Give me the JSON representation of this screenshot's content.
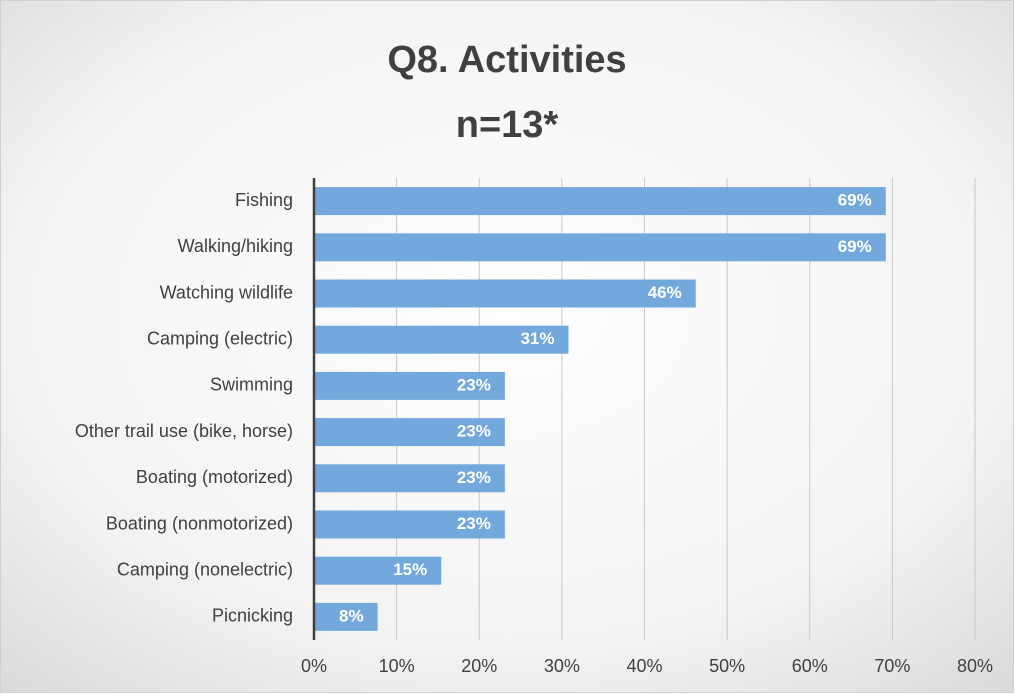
{
  "chart_data": {
    "type": "bar",
    "orientation": "horizontal",
    "title": "Q8. Activities",
    "subtitle": "n=13*",
    "categories": [
      "Fishing",
      "Walking/hiking",
      "Watching wildlife",
      "Camping (electric)",
      "Swimming",
      "Other trail use (bike, horse)",
      "Boating (motorized)",
      "Boating (nonmotorized)",
      "Camping (nonelectric)",
      "Picnicking"
    ],
    "values": [
      69.2,
      69.2,
      46.2,
      30.8,
      23.1,
      23.1,
      23.1,
      23.1,
      15.4,
      7.7
    ],
    "value_labels": [
      "69%",
      "69%",
      "46%",
      "31%",
      "23%",
      "23%",
      "23%",
      "23%",
      "15%",
      "8%"
    ],
    "color": "#72a8dc",
    "xlim": [
      0,
      80
    ],
    "xticks": [
      {
        "value": 0,
        "label": "0%"
      },
      {
        "value": 10,
        "label": "10%"
      },
      {
        "value": 20,
        "label": "20%"
      },
      {
        "value": 30,
        "label": "30%"
      },
      {
        "value": 40,
        "label": "40%"
      },
      {
        "value": 50,
        "label": "50%"
      },
      {
        "value": 60,
        "label": "60%"
      },
      {
        "value": 70,
        "label": "70%"
      },
      {
        "value": 80,
        "label": "80%"
      }
    ],
    "grid": true
  }
}
